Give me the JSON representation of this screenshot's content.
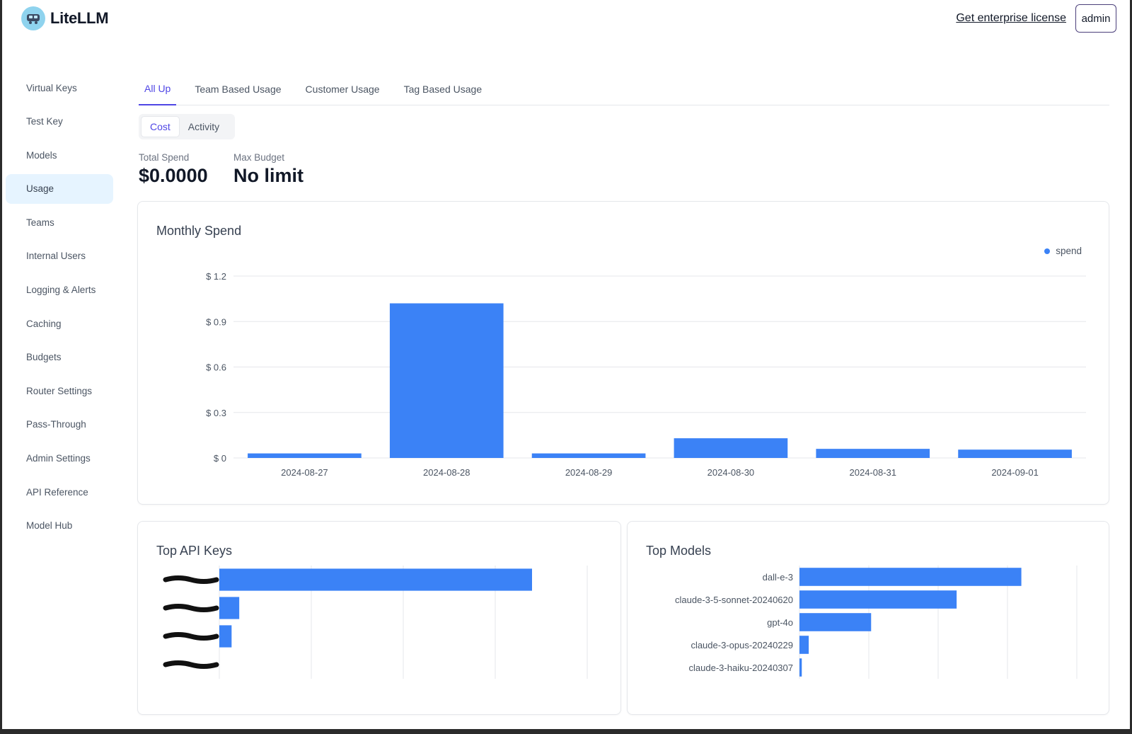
{
  "header": {
    "app_name": "LiteLLM",
    "enterprise_link": "Get enterprise license",
    "user_button": "admin"
  },
  "sidebar": {
    "items": [
      {
        "label": "Virtual Keys"
      },
      {
        "label": "Test Key"
      },
      {
        "label": "Models"
      },
      {
        "label": "Usage",
        "active": true
      },
      {
        "label": "Teams"
      },
      {
        "label": "Internal Users"
      },
      {
        "label": "Logging & Alerts"
      },
      {
        "label": "Caching"
      },
      {
        "label": "Budgets"
      },
      {
        "label": "Router Settings"
      },
      {
        "label": "Pass-Through"
      },
      {
        "label": "Admin Settings"
      },
      {
        "label": "API Reference"
      },
      {
        "label": "Model Hub"
      }
    ]
  },
  "tabs": [
    {
      "label": "All Up",
      "active": true
    },
    {
      "label": "Team Based Usage"
    },
    {
      "label": "Customer Usage"
    },
    {
      "label": "Tag Based Usage"
    }
  ],
  "segment": {
    "cost": "Cost",
    "activity": "Activity",
    "active": "cost"
  },
  "metrics": {
    "total_spend_label": "Total Spend",
    "total_spend_value": "$0.0000",
    "max_budget_label": "Max Budget",
    "max_budget_value": "No limit"
  },
  "colors": {
    "accent": "#4f46e5",
    "bar": "#3b82f6"
  },
  "monthly_spend": {
    "title": "Monthly Spend",
    "legend": "spend"
  },
  "top_api_keys": {
    "title": "Top API Keys"
  },
  "top_models": {
    "title": "Top Models"
  },
  "chart_data": [
    {
      "type": "bar",
      "title": "Monthly Spend",
      "categories": [
        "2024-08-27",
        "2024-08-28",
        "2024-08-29",
        "2024-08-30",
        "2024-08-31",
        "2024-09-01"
      ],
      "series": [
        {
          "name": "spend",
          "values": [
            0.03,
            1.02,
            0.03,
            0.13,
            0.06,
            0.055
          ]
        }
      ],
      "ylim": [
        0,
        1.2
      ],
      "yticks": [
        0,
        0.3,
        0.6,
        0.9,
        1.2
      ],
      "ytick_labels": [
        "$ 0",
        "$ 0.3",
        "$ 0.6",
        "$ 0.9",
        "$ 1.2"
      ],
      "legend": "top-right",
      "grid": true
    },
    {
      "type": "bar",
      "orientation": "horizontal",
      "title": "Top API Keys",
      "categories": [
        "",
        "",
        "",
        ""
      ],
      "values": [
        1.02,
        0.065,
        0.04,
        0.0
      ],
      "xlim": [
        0,
        1.2
      ],
      "grid": true
    },
    {
      "type": "bar",
      "orientation": "horizontal",
      "title": "Top Models",
      "categories": [
        "dall-e-3",
        "claude-3-5-sonnet-20240620",
        "gpt-4o",
        "claude-3-opus-20240229",
        "claude-3-haiku-20240307"
      ],
      "values": [
        0.96,
        0.68,
        0.31,
        0.04,
        0.01
      ],
      "xlim": [
        0,
        1.2
      ],
      "grid": true
    }
  ]
}
